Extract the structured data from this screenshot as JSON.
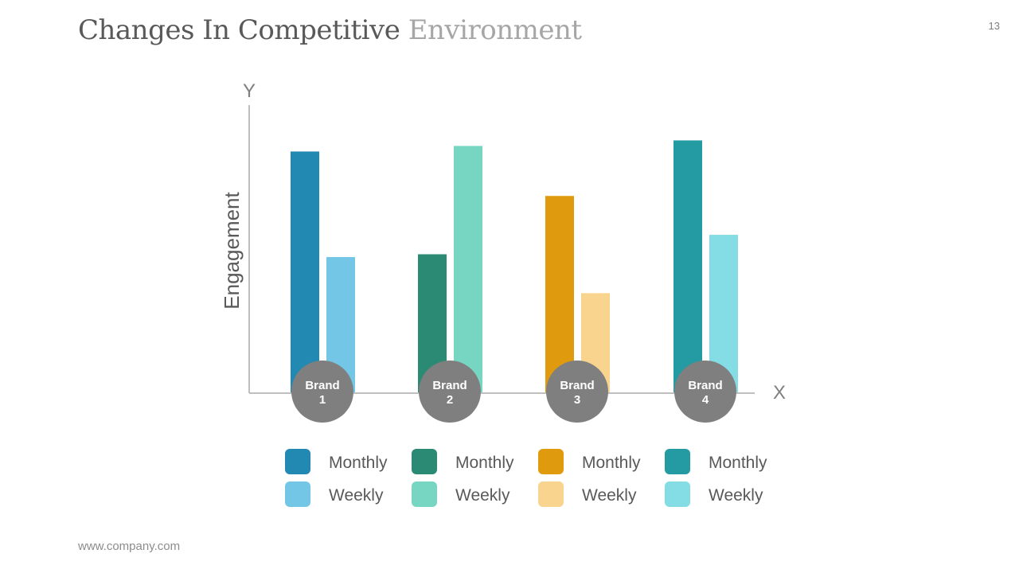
{
  "header": {
    "title_main": "Changes In Competitive",
    "title_accent": "Environment",
    "page_number": "13"
  },
  "footer": {
    "url": "www.company.com"
  },
  "chart_data": {
    "type": "bar",
    "title": "Changes In Competitive Environment",
    "xlabel": "X",
    "ylabel": "Engagement",
    "y_axis_letter": "Y",
    "categories": [
      {
        "label_line1": "Brand",
        "label_line2": "1"
      },
      {
        "label_line1": "Brand",
        "label_line2": "2"
      },
      {
        "label_line1": "Brand",
        "label_line2": "3"
      },
      {
        "label_line1": "Brand",
        "label_line2": "4"
      }
    ],
    "ylim": [
      0,
      100
    ],
    "series": [
      {
        "name": "Monthly",
        "values": [
          87,
          50,
          71,
          91
        ]
      },
      {
        "name": "Weekly",
        "values": [
          49,
          89,
          36,
          57
        ]
      }
    ],
    "colors": [
      {
        "monthly": "#2289b3",
        "weekly": "#73c6e6"
      },
      {
        "monthly": "#2a8a73",
        "weekly": "#76d6c2"
      },
      {
        "monthly": "#e09a0e",
        "weekly": "#f9d48e"
      },
      {
        "monthly": "#249aa3",
        "weekly": "#84dde4"
      }
    ],
    "brand_badge_color": "#7f7f7f",
    "axis_color": "#bfbfbf",
    "legend": [
      [
        "Monthly",
        "Monthly",
        "Monthly",
        "Monthly"
      ],
      [
        "Weekly",
        "Weekly",
        "Weekly",
        "Weekly"
      ]
    ]
  }
}
